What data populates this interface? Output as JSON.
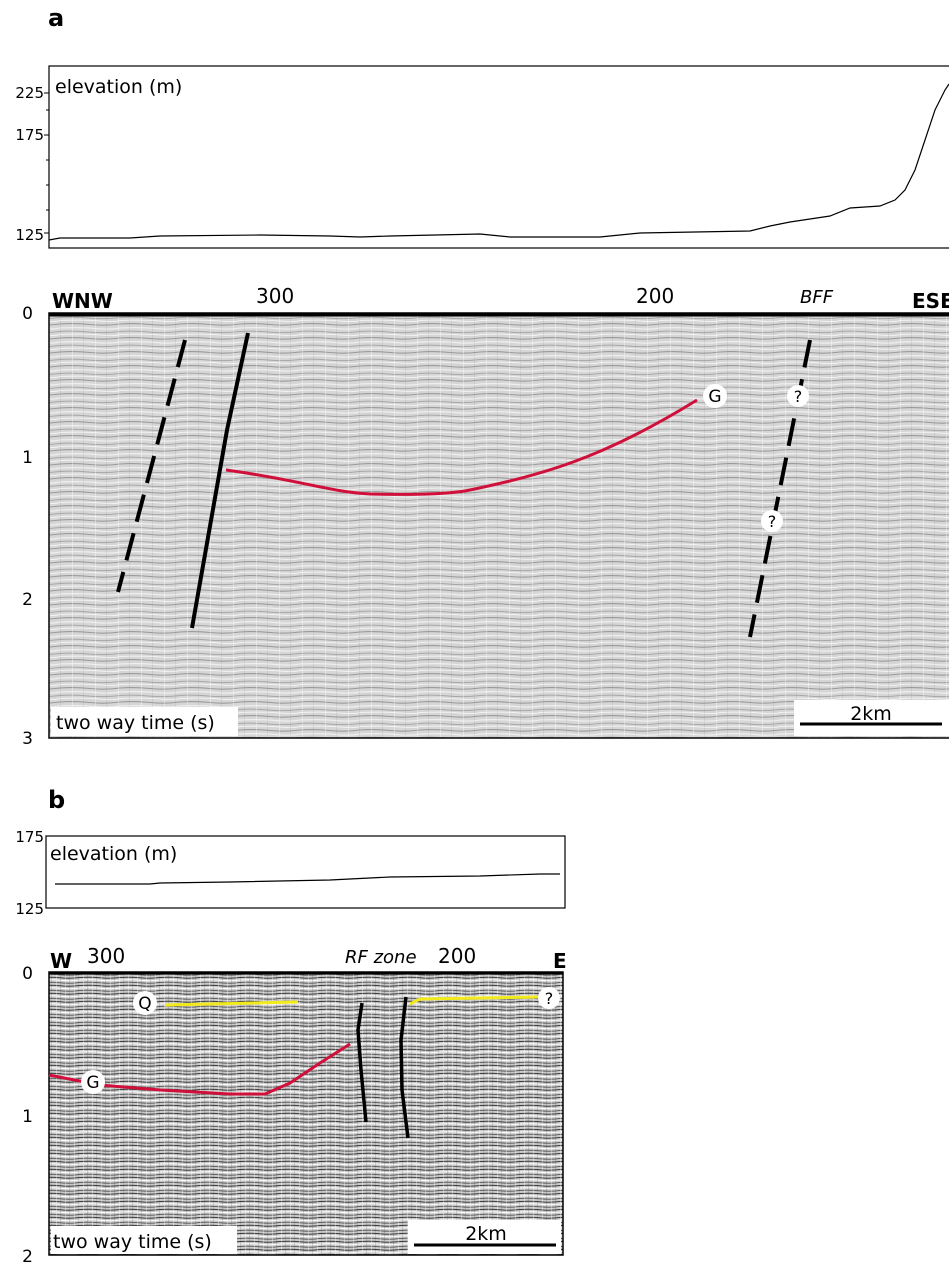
{
  "panel_a": {
    "letter": "a",
    "elevation": {
      "label": "elevation (m)",
      "ticks": [
        "225",
        "175",
        "125"
      ]
    },
    "seismic": {
      "left_dir": "WNW",
      "right_dir": "ESE",
      "cdp_ticks": [
        "300",
        "200"
      ],
      "fault_label": "BFF",
      "time_ticks": [
        "0",
        "1",
        "2",
        "3"
      ],
      "axis_label": "two way time (s)",
      "scale": "2km",
      "horizon": "G",
      "question": "?"
    }
  },
  "panel_b": {
    "letter": "b",
    "elevation": {
      "label": "elevation (m)",
      "ticks": [
        "175",
        "125"
      ]
    },
    "seismic": {
      "left_dir": "W",
      "right_dir": "E",
      "cdp_ticks": [
        "300",
        "200"
      ],
      "fault_label": "RF zone",
      "time_ticks": [
        "0",
        "1",
        "2"
      ],
      "axis_label": "two way time (s)",
      "scale": "2km",
      "horizon_g": "G",
      "horizon_q": "Q",
      "question": "?"
    }
  },
  "colors": {
    "horizon_g": "#d0103a",
    "horizon_q": "#f2ea1a",
    "fault": "#000000",
    "seismic_bg_a": "#d4d4d4",
    "seismic_bg_b": "#c6c6c6"
  }
}
